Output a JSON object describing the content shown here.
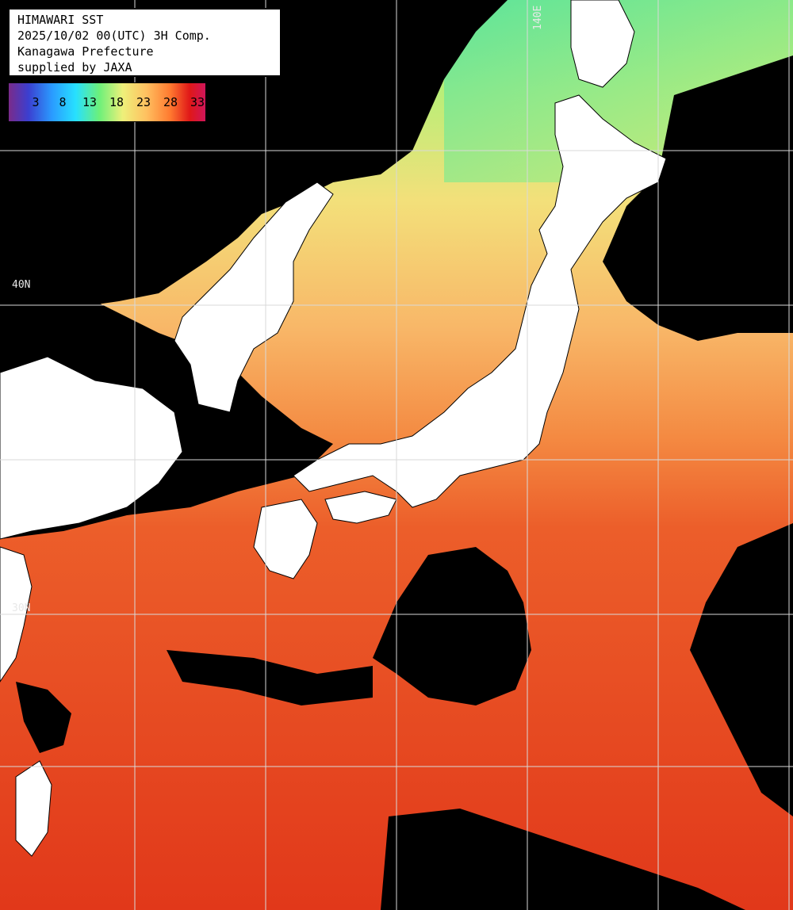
{
  "info": {
    "line1": "HIMAWARI SST",
    "line2": "2025/10/02 00(UTC) 3H Comp.",
    "line3": "Kanagawa Prefecture",
    "line4": "supplied by JAXA"
  },
  "legend": {
    "labels": [
      "3",
      "8",
      "13",
      "18",
      "23",
      "28",
      "33"
    ],
    "colors": [
      "#7a2b8a",
      "#3b3fd0",
      "#2a9bff",
      "#27e0ff",
      "#6cf07a",
      "#eef07a",
      "#ffc060",
      "#ff7a30",
      "#e01818",
      "#d0155a"
    ]
  },
  "grid_labels": {
    "lon": "140E",
    "lat_40": "40N",
    "lat_30": "30N"
  },
  "colors": {
    "land": "#ffffff",
    "cloud": "#000000",
    "sea_warm": "#e5421c",
    "sea_mid": "#f47a3a",
    "sea_cool": "#f6c36a",
    "sea_cold": "#8fe57a",
    "grid": "#d9d9d9"
  }
}
